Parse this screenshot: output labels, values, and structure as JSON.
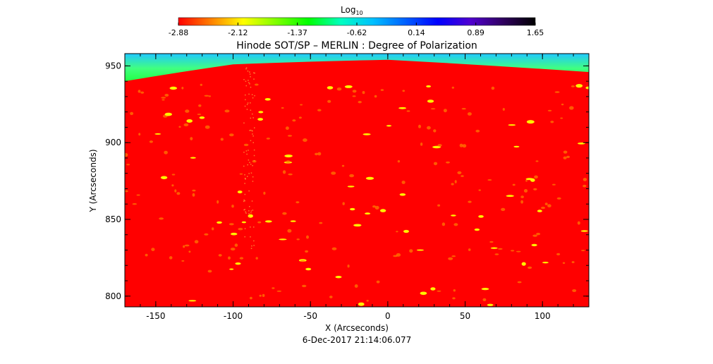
{
  "colorbar": {
    "label": "Log",
    "label_subscript": "10",
    "ticks": [
      "-2.88",
      "-2.12",
      "-1.37",
      "-0.62",
      "0.14",
      "0.89",
      "1.65"
    ],
    "range": [
      -2.88,
      1.65
    ],
    "colors": [
      "#ff0000",
      "#ff8000",
      "#ffff00",
      "#80ff00",
      "#00ff00",
      "#00ffc0",
      "#00c0ff",
      "#0060ff",
      "#0000ff",
      "#5000d0",
      "#300060",
      "#000000"
    ]
  },
  "chart_data": {
    "type": "heatmap",
    "title": "Hinode SOT/SP – MERLIN : Degree of Polarization",
    "xlabel": "X (Arcseconds)",
    "ylabel": "Y (Arcseconds)",
    "xlim": [
      -170,
      130
    ],
    "ylim": [
      793,
      958
    ],
    "xticks": [
      -150,
      -100,
      -50,
      0,
      50,
      100
    ],
    "yticks": [
      800,
      850,
      900,
      950
    ],
    "limb_y_at": [
      {
        "x": -170,
        "y": 940
      },
      {
        "x": -100,
        "y": 951
      },
      {
        "x": 0,
        "y": 954
      },
      {
        "x": 130,
        "y": 946
      }
    ],
    "disk_color": "#ff0000",
    "offlimb_colors": [
      "#00ff00",
      "#40ff80",
      "#00c0ff"
    ]
  },
  "timestamp": "6-Dec-2017 21:14:06.077"
}
